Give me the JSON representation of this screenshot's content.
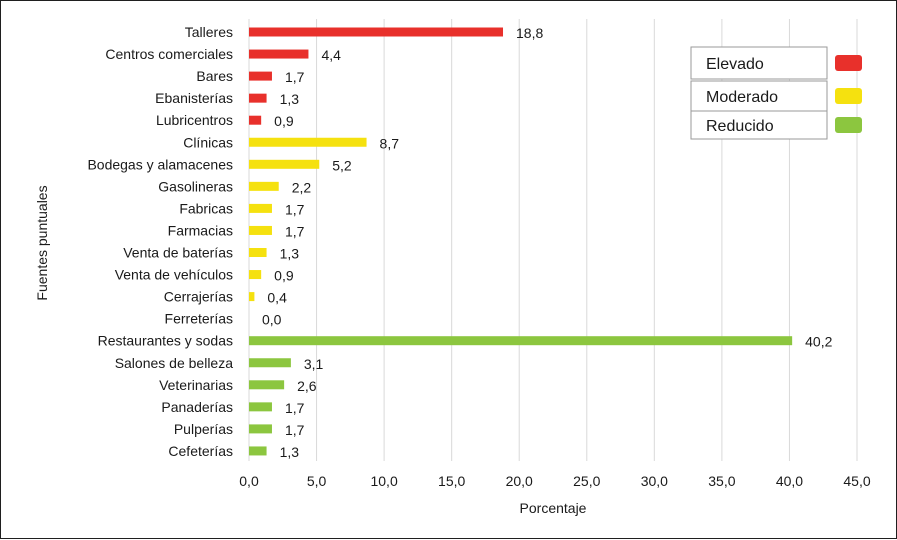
{
  "chart_data": {
    "type": "bar",
    "orientation": "horizontal",
    "categories": [
      "Talleres",
      "Centros comerciales",
      "Bares",
      "Ebanisterías",
      "Lubricentros",
      "Clínicas",
      "Bodegas y alamacenes",
      "Gasolineras",
      "Fabricas",
      "Farmacias",
      "Venta de baterías",
      "Venta de vehículos",
      "Cerrajerías",
      "Ferreterías",
      "Restaurantes y sodas",
      "Salones de belleza",
      "Veterinarias",
      "Panaderías",
      "Pulperías",
      "Cefeterías"
    ],
    "values": [
      18.8,
      4.4,
      1.7,
      1.3,
      0.9,
      8.7,
      5.2,
      2.2,
      1.7,
      1.7,
      1.3,
      0.9,
      0.4,
      0.0,
      40.2,
      3.1,
      2.6,
      1.7,
      1.7,
      1.3
    ],
    "value_labels": [
      "18,8",
      "4,4",
      "1,7",
      "1,3",
      "0,9",
      "8,7",
      "5,2",
      "2,2",
      "1,7",
      "1,7",
      "1,3",
      "0,9",
      "0,4",
      "0,0",
      "40,2",
      "3,1",
      "2,6",
      "1,7",
      "1,7",
      "1,3"
    ],
    "groups": [
      "Elevado",
      "Elevado",
      "Elevado",
      "Elevado",
      "Elevado",
      "Moderado",
      "Moderado",
      "Moderado",
      "Moderado",
      "Moderado",
      "Moderado",
      "Moderado",
      "Moderado",
      "Moderado",
      "Reducido",
      "Reducido",
      "Reducido",
      "Reducido",
      "Reducido",
      "Reducido"
    ],
    "group_colors": {
      "Elevado": "#e8302b",
      "Moderado": "#f5e10f",
      "Reducido": "#8cc63f"
    },
    "xlabel": "Porcentaje",
    "ylabel": "Fuentes puntuales",
    "xlim": [
      0,
      45
    ],
    "xticks": [
      0,
      5,
      10,
      15,
      20,
      25,
      30,
      35,
      40,
      45
    ],
    "xtick_labels": [
      "0,0",
      "5,0",
      "10,0",
      "15,0",
      "20,0",
      "25,0",
      "30,0",
      "35,0",
      "40,0",
      "45,0"
    ],
    "grid": "vertical",
    "legend": {
      "placement": "top-right",
      "entries": [
        {
          "label": "Elevado",
          "color": "#e8302b"
        },
        {
          "label": "Moderado",
          "color": "#f5e10f"
        },
        {
          "label": "Reducido",
          "color": "#8cc63f"
        }
      ]
    }
  }
}
